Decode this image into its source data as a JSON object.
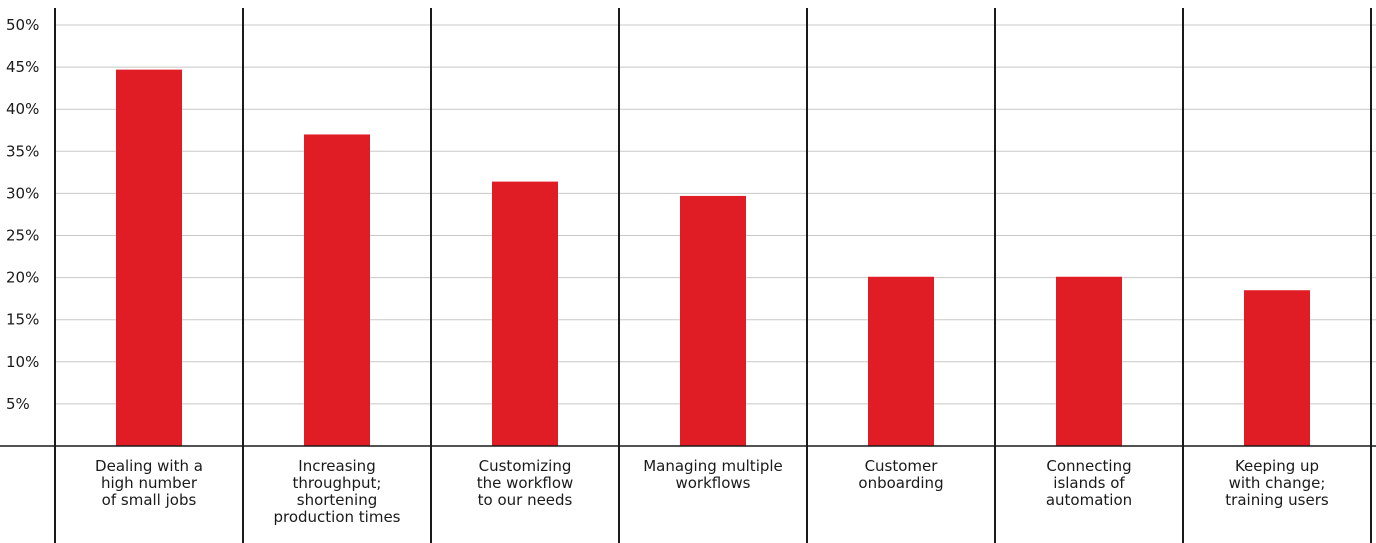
{
  "chart_data": {
    "type": "bar",
    "title": "",
    "xlabel": "",
    "ylabel": "",
    "ylim": [
      0,
      50
    ],
    "yticks": [
      5,
      10,
      15,
      20,
      25,
      30,
      35,
      40,
      45,
      50
    ],
    "ytick_suffix": "%",
    "grid": true,
    "legend": "none",
    "bar_color": "#e01c24",
    "categories": [
      [
        "Dealing with a",
        "high number",
        "of small jobs"
      ],
      [
        "Increasing",
        "throughput;",
        "shortening",
        "production times"
      ],
      [
        "Customizing",
        "the workflow",
        "to our needs"
      ],
      [
        "Managing multiple",
        "workflows"
      ],
      [
        "Customer",
        "onboarding"
      ],
      [
        "Connecting",
        "islands of",
        "automation"
      ],
      [
        "Keeping up",
        "with change;",
        "training users"
      ]
    ],
    "values": [
      44.7,
      37.0,
      31.4,
      29.7,
      20.1,
      20.1,
      18.5
    ]
  }
}
